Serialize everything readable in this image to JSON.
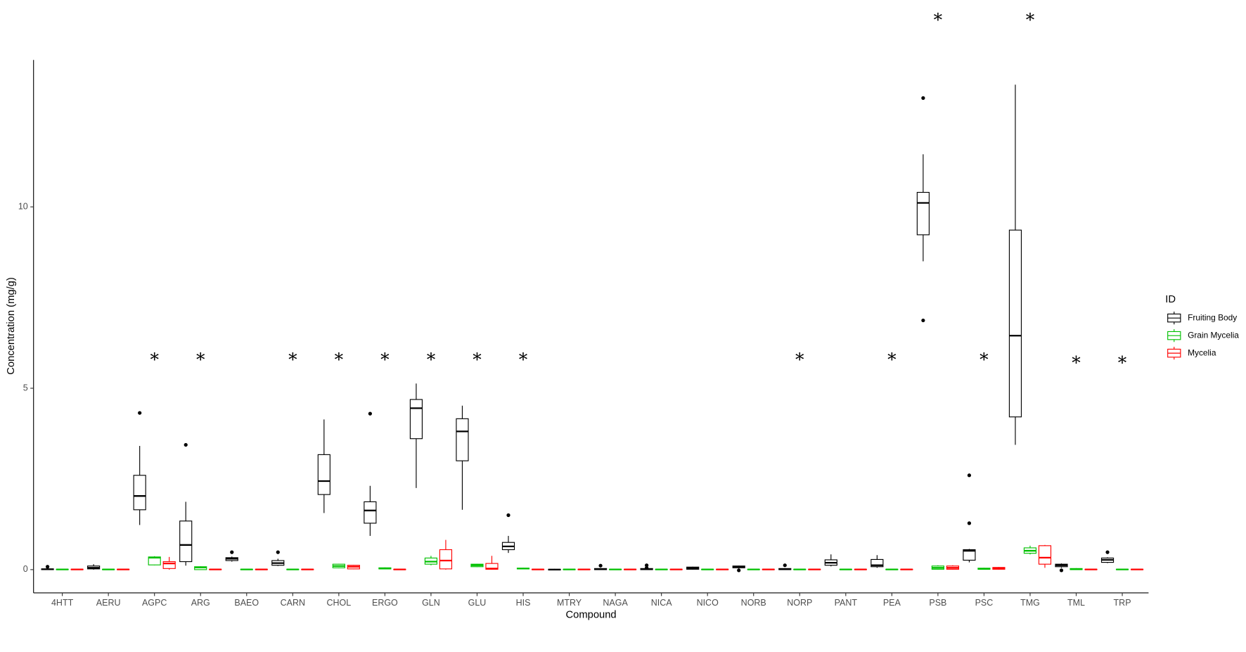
{
  "chart_data": {
    "type": "boxplot",
    "x_label": "Compound",
    "y_label": "Concentration (mg/g)",
    "legend_title": "ID",
    "categories": [
      "4HTT",
      "AERU",
      "AGPC",
      "ARG",
      "BAEO",
      "CARN",
      "CHOL",
      "ERGO",
      "GLN",
      "GLU",
      "HIS",
      "MTRY",
      "NAGA",
      "NICA",
      "NICO",
      "NORB",
      "NORP",
      "PANT",
      "PEA",
      "PSB",
      "PSC",
      "TMG",
      "TML",
      "TRP"
    ],
    "ylim": [
      -0.64,
      14.05
    ],
    "yticks": [
      0,
      5,
      10
    ],
    "grid": false,
    "significance": [
      null,
      null,
      "*",
      "*",
      null,
      "*",
      "*",
      "*",
      "*",
      "*",
      "*",
      null,
      null,
      null,
      null,
      null,
      "*",
      null,
      "*",
      "*",
      "*",
      "*",
      "*",
      "*"
    ],
    "significance_y": [
      null,
      null,
      5.86,
      5.86,
      null,
      5.86,
      5.86,
      5.86,
      5.86,
      5.86,
      5.86,
      null,
      null,
      null,
      null,
      null,
      5.86,
      null,
      5.86,
      15.22,
      5.86,
      15.22,
      5.77,
      5.77
    ],
    "series": [
      {
        "name": "Fruiting Body",
        "color": "#000000",
        "values": [
          {
            "min": 0,
            "q1": 0,
            "median": 0.01,
            "q3": 0.02,
            "max": 0.03,
            "outliers": [
              0.08
            ]
          },
          {
            "min": 0,
            "q1": 0.02,
            "median": 0.05,
            "q3": 0.1,
            "max": 0.15
          },
          {
            "min": 1.23,
            "q1": 1.65,
            "median": 2.03,
            "q3": 2.6,
            "max": 3.41,
            "outliers": [
              4.32
            ]
          },
          {
            "min": 0.11,
            "q1": 0.22,
            "median": 0.68,
            "q3": 1.34,
            "max": 1.87,
            "outliers": [
              3.44
            ]
          },
          {
            "min": 0.22,
            "q1": 0.25,
            "median": 0.3,
            "q3": 0.33,
            "max": 0.36,
            "outliers": [
              0.48
            ]
          },
          {
            "min": 0.1,
            "q1": 0.12,
            "median": 0.18,
            "q3": 0.25,
            "max": 0.3,
            "outliers": [
              0.48
            ]
          },
          {
            "min": 1.56,
            "q1": 2.07,
            "median": 2.44,
            "q3": 3.17,
            "max": 4.14
          },
          {
            "min": 0.93,
            "q1": 1.28,
            "median": 1.63,
            "q3": 1.87,
            "max": 2.31,
            "outliers": [
              4.3
            ]
          },
          {
            "min": 2.25,
            "q1": 3.61,
            "median": 4.45,
            "q3": 4.69,
            "max": 5.13
          },
          {
            "min": 1.65,
            "q1": 3.0,
            "median": 3.81,
            "q3": 4.16,
            "max": 4.52
          },
          {
            "min": 0.46,
            "q1": 0.55,
            "median": 0.64,
            "q3": 0.75,
            "max": 0.93,
            "outliers": [
              1.5
            ]
          },
          {
            "min": -0.02,
            "q1": -0.01,
            "median": 0,
            "q3": 0.01,
            "max": 0.02
          },
          {
            "min": 0,
            "q1": 0,
            "median": 0.01,
            "q3": 0.03,
            "max": 0.04,
            "outliers": [
              0.11
            ]
          },
          {
            "min": 0,
            "q1": 0,
            "median": 0.01,
            "q3": 0.03,
            "max": 0.04,
            "outliers": [
              0.05,
              0.12
            ]
          },
          {
            "min": 0,
            "q1": 0.01,
            "median": 0.04,
            "q3": 0.07,
            "max": 0.08
          },
          {
            "min": 0.03,
            "q1": 0.05,
            "median": 0.08,
            "q3": 0.1,
            "max": 0.11,
            "outliers": [
              -0.02
            ]
          },
          {
            "min": 0,
            "q1": 0,
            "median": 0.01,
            "q3": 0.03,
            "max": 0.04,
            "outliers": [
              0.12
            ]
          },
          {
            "min": 0.09,
            "q1": 0.12,
            "median": 0.19,
            "q3": 0.27,
            "max": 0.42
          },
          {
            "min": 0.05,
            "q1": 0.08,
            "median": 0.12,
            "q3": 0.28,
            "max": 0.4
          },
          {
            "min": 8.5,
            "q1": 9.23,
            "median": 10.11,
            "q3": 10.4,
            "max": 11.45,
            "outliers": [
              13.0,
              6.87
            ]
          },
          {
            "min": 0.2,
            "q1": 0.26,
            "median": 0.52,
            "q3": 0.55,
            "max": 0.57,
            "outliers": [
              1.28,
              2.6
            ]
          },
          {
            "min": 3.44,
            "q1": 4.21,
            "median": 6.45,
            "q3": 9.36,
            "max": 13.37
          },
          {
            "min": 0.05,
            "q1": 0.08,
            "median": 0.12,
            "q3": 0.15,
            "max": 0.17,
            "outliers": [
              -0.02
            ]
          },
          {
            "min": 0.18,
            "q1": 0.2,
            "median": 0.27,
            "q3": 0.32,
            "max": 0.34,
            "outliers": [
              0.48
            ]
          }
        ]
      },
      {
        "name": "Grain Mycelia",
        "color": "#00c000",
        "values": [
          {
            "min": 0,
            "q1": 0,
            "median": 0.005,
            "q3": 0.01,
            "max": 0.02
          },
          {
            "min": 0,
            "q1": 0,
            "median": 0.005,
            "q3": 0.01,
            "max": 0.02
          },
          {
            "min": 0.12,
            "q1": 0.13,
            "median": 0.33,
            "q3": 0.35,
            "max": 0.37
          },
          {
            "min": 0,
            "q1": 0,
            "median": 0.06,
            "q3": 0.08,
            "max": 0.09
          },
          {
            "min": 0,
            "q1": 0,
            "median": 0.005,
            "q3": 0.01,
            "max": 0.02
          },
          {
            "min": 0,
            "q1": 0,
            "median": 0.005,
            "q3": 0.01,
            "max": 0.02
          },
          {
            "min": 0.04,
            "q1": 0.05,
            "median": 0.1,
            "q3": 0.15,
            "max": 0.16
          },
          {
            "min": 0.01,
            "q1": 0.02,
            "median": 0.03,
            "q3": 0.05,
            "max": 0.06
          },
          {
            "min": 0.12,
            "q1": 0.15,
            "median": 0.22,
            "q3": 0.32,
            "max": 0.38
          },
          {
            "min": 0.07,
            "q1": 0.08,
            "median": 0.12,
            "q3": 0.15,
            "max": 0.16
          },
          {
            "min": 0.01,
            "q1": 0.02,
            "median": 0.03,
            "q3": 0.04,
            "max": 0.05
          },
          {
            "min": 0,
            "q1": 0,
            "median": 0.005,
            "q3": 0.01,
            "max": 0.02
          },
          {
            "min": 0,
            "q1": 0,
            "median": 0.005,
            "q3": 0.01,
            "max": 0.02
          },
          {
            "min": 0,
            "q1": 0,
            "median": 0.005,
            "q3": 0.01,
            "max": 0.02
          },
          {
            "min": 0,
            "q1": 0,
            "median": 0.005,
            "q3": 0.01,
            "max": 0.02
          },
          {
            "min": 0,
            "q1": 0,
            "median": 0.005,
            "q3": 0.01,
            "max": 0.02
          },
          {
            "min": 0,
            "q1": 0,
            "median": 0.005,
            "q3": 0.01,
            "max": 0.02
          },
          {
            "min": 0,
            "q1": 0,
            "median": 0.005,
            "q3": 0.01,
            "max": 0.02
          },
          {
            "min": 0,
            "q1": 0,
            "median": 0.005,
            "q3": 0.01,
            "max": 0.02
          },
          {
            "min": 0,
            "q1": 0.01,
            "median": 0.05,
            "q3": 0.1,
            "max": 0.12
          },
          {
            "min": 0,
            "q1": 0.01,
            "median": 0.02,
            "q3": 0.04,
            "max": 0.05
          },
          {
            "min": 0.42,
            "q1": 0.45,
            "median": 0.52,
            "q3": 0.6,
            "max": 0.66
          },
          {
            "min": 0,
            "q1": 0,
            "median": 0.01,
            "q3": 0.03,
            "max": 0.04
          },
          {
            "min": 0,
            "q1": 0,
            "median": 0.005,
            "q3": 0.01,
            "max": 0.02
          }
        ]
      },
      {
        "name": "Mycelia",
        "color": "#ff0000",
        "values": [
          {
            "min": 0,
            "q1": 0,
            "median": 0.005,
            "q3": 0.01,
            "max": 0.02
          },
          {
            "min": 0,
            "q1": 0,
            "median": 0.005,
            "q3": 0.01,
            "max": 0.02
          },
          {
            "min": 0,
            "q1": 0.03,
            "median": 0.17,
            "q3": 0.22,
            "max": 0.35
          },
          {
            "min": 0,
            "q1": 0,
            "median": 0.005,
            "q3": 0.01,
            "max": 0.02
          },
          {
            "min": 0,
            "q1": 0,
            "median": 0.005,
            "q3": 0.01,
            "max": 0.02
          },
          {
            "min": 0,
            "q1": 0,
            "median": 0.005,
            "q3": 0.01,
            "max": 0.02
          },
          {
            "min": 0.01,
            "q1": 0.02,
            "median": 0.08,
            "q3": 0.12,
            "max": 0.13
          },
          {
            "min": 0,
            "q1": 0,
            "median": 0.005,
            "q3": 0.01,
            "max": 0.02
          },
          {
            "min": 0,
            "q1": 0.02,
            "median": 0.25,
            "q3": 0.55,
            "max": 0.82
          },
          {
            "min": 0,
            "q1": 0.01,
            "median": 0.03,
            "q3": 0.17,
            "max": 0.38
          },
          {
            "min": 0,
            "q1": 0,
            "median": 0.005,
            "q3": 0.01,
            "max": 0.02
          },
          {
            "min": 0,
            "q1": 0,
            "median": 0.005,
            "q3": 0.01,
            "max": 0.02
          },
          {
            "min": 0,
            "q1": 0,
            "median": 0.005,
            "q3": 0.01,
            "max": 0.02
          },
          {
            "min": 0,
            "q1": 0,
            "median": 0.005,
            "q3": 0.01,
            "max": 0.02
          },
          {
            "min": 0,
            "q1": 0,
            "median": 0.005,
            "q3": 0.01,
            "max": 0.02
          },
          {
            "min": 0,
            "q1": 0,
            "median": 0.005,
            "q3": 0.01,
            "max": 0.02
          },
          {
            "min": 0,
            "q1": 0,
            "median": 0.005,
            "q3": 0.01,
            "max": 0.02
          },
          {
            "min": 0,
            "q1": 0,
            "median": 0.005,
            "q3": 0.01,
            "max": 0.02
          },
          {
            "min": 0,
            "q1": 0,
            "median": 0.005,
            "q3": 0.01,
            "max": 0.02
          },
          {
            "min": 0,
            "q1": 0.01,
            "median": 0.05,
            "q3": 0.1,
            "max": 0.12
          },
          {
            "min": 0,
            "q1": 0.01,
            "median": 0.04,
            "q3": 0.06,
            "max": 0.07
          },
          {
            "min": 0.05,
            "q1": 0.15,
            "median": 0.33,
            "q3": 0.66,
            "max": 0.68
          },
          {
            "min": 0,
            "q1": 0,
            "median": 0.005,
            "q3": 0.01,
            "max": 0.02
          },
          {
            "min": 0,
            "q1": 0,
            "median": 0.005,
            "q3": 0.01,
            "max": 0.02
          }
        ]
      }
    ]
  }
}
